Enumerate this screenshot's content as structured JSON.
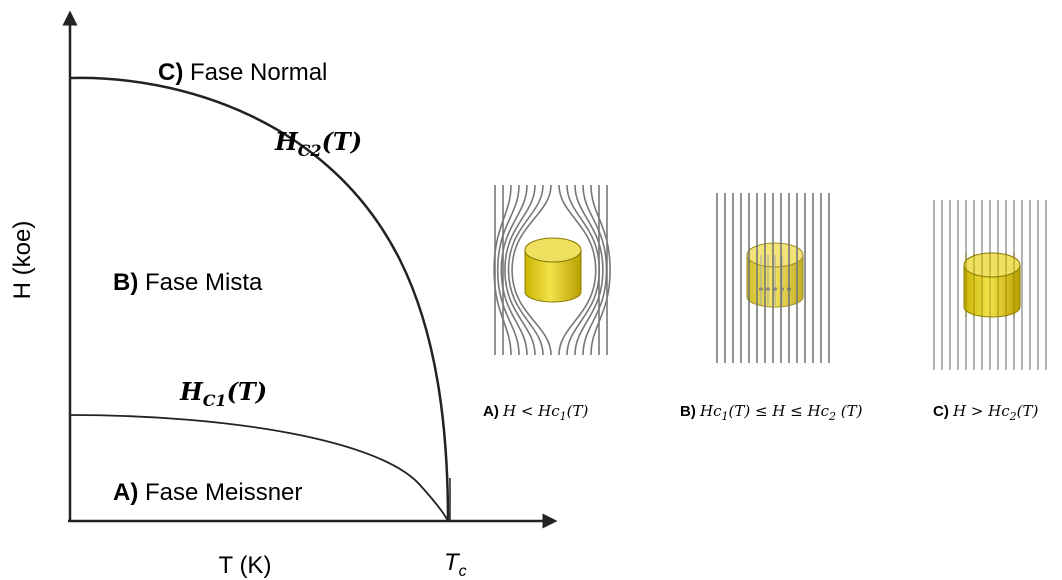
{
  "axes": {
    "y_label": "H (koe)",
    "x_label": "T (K)",
    "tc": {
      "main": "T",
      "sub": "c"
    }
  },
  "regions": [
    {
      "letter": "C)",
      "name": "Fase Normal"
    },
    {
      "letter": "B)",
      "name": "Fase Mista"
    },
    {
      "letter": "A)",
      "name": "Fase Meissner"
    }
  ],
  "curves": [
    {
      "main": "H",
      "sub": "C2",
      "arg": "(T)"
    },
    {
      "main": "H",
      "sub": "C1",
      "arg": "(T)"
    }
  ],
  "panels": [
    {
      "letter": "A)",
      "condition": [
        "H < Hc",
        {
          "sub": "1"
        },
        "(T)"
      ]
    },
    {
      "letter": "B)",
      "condition": [
        "Hc",
        {
          "sub": "1"
        },
        "(T) ≤ H ≤ Hc",
        {
          "sub": "2"
        },
        " (T)"
      ]
    },
    {
      "letter": "C)",
      "condition": [
        "H > Hc",
        {
          "sub": "2"
        },
        "(T)"
      ]
    }
  ]
}
